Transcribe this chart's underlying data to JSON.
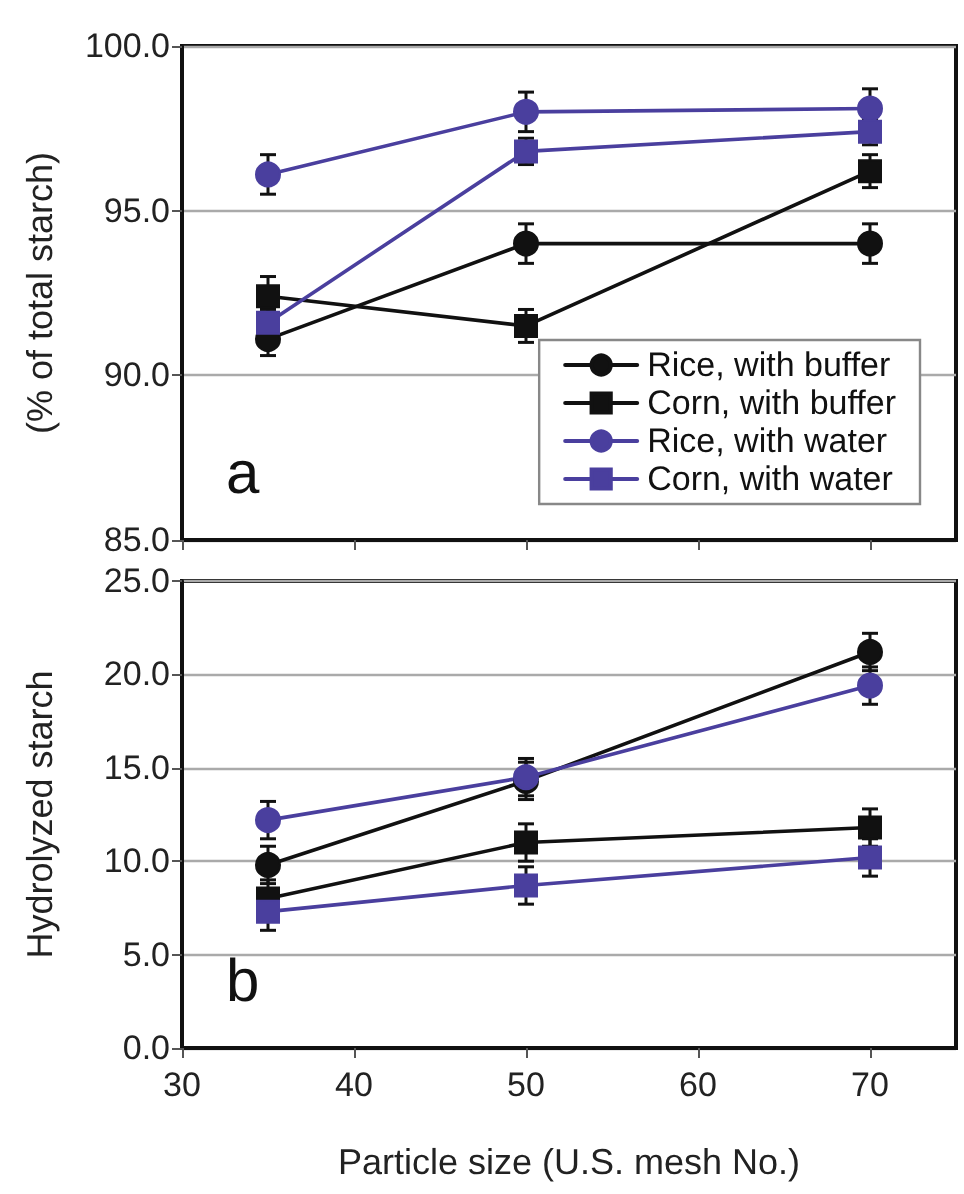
{
  "chart_data": [
    {
      "type": "line",
      "ylabel": "(% of total starch)",
      "x": [
        35,
        50,
        70
      ],
      "xlim": [
        30,
        75
      ],
      "xticks": [
        30,
        40,
        50,
        60,
        70
      ],
      "ylim": [
        85,
        100
      ],
      "yticks": [
        {
          "value": 85,
          "label": "85.0"
        },
        {
          "value": 90,
          "label": "90.0"
        },
        {
          "value": 95,
          "label": "95.0"
        },
        {
          "value": 100,
          "label": "100.0"
        }
      ],
      "grid": "y",
      "legend": "bottom right",
      "tick_labels": "y",
      "annotations": [
        "a"
      ],
      "series": [
        {
          "name": "Rice, with buffer",
          "color": "#111111",
          "marker": "circle",
          "values": [
            91.1,
            94.0,
            94.0
          ],
          "errors": [
            0.5,
            0.6,
            0.6
          ]
        },
        {
          "name": "Corn, with buffer",
          "color": "#111111",
          "marker": "square",
          "values": [
            92.4,
            91.5,
            96.2
          ],
          "errors": [
            0.6,
            0.5,
            0.5
          ]
        },
        {
          "name": "Rice, with water",
          "color": "#4a3f9e",
          "marker": "circle",
          "values": [
            96.1,
            98.0,
            98.1
          ],
          "errors": [
            0.6,
            0.6,
            0.6
          ]
        },
        {
          "name": "Corn, with water",
          "color": "#4a3f9e",
          "marker": "square",
          "values": [
            91.6,
            96.8,
            97.4
          ],
          "errors": [
            0.4,
            0.4,
            0.4
          ]
        }
      ]
    },
    {
      "type": "line",
      "ylabel": "Hydrolyzed starch",
      "xlabel": "Particle size (U.S. mesh No.)",
      "x": [
        35,
        50,
        70
      ],
      "xlim": [
        30,
        75
      ],
      "xticks": [
        30,
        40,
        50,
        60,
        70
      ],
      "ylim": [
        0,
        25
      ],
      "yticks": [
        {
          "value": 0,
          "label": "0.0"
        },
        {
          "value": 5,
          "label": "5.0"
        },
        {
          "value": 10,
          "label": "10.0"
        },
        {
          "value": 15,
          "label": "15.0"
        },
        {
          "value": 20,
          "label": "20.0"
        },
        {
          "value": 25,
          "label": "25.0"
        }
      ],
      "grid": "y",
      "annotations": [
        "b"
      ],
      "series": [
        {
          "color": "#111111",
          "marker": "circle",
          "values": [
            9.8,
            14.3,
            21.2
          ],
          "errors": [
            1.0,
            1.0,
            1.0
          ]
        },
        {
          "color": "#111111",
          "marker": "square",
          "values": [
            8.0,
            11.0,
            11.8
          ],
          "errors": [
            1.0,
            1.0,
            1.0
          ]
        },
        {
          "color": "#4a3f9e",
          "marker": "circle",
          "values": [
            12.2,
            14.5,
            19.4
          ],
          "errors": [
            1.0,
            1.0,
            1.0
          ]
        },
        {
          "color": "#4a3f9e",
          "marker": "square",
          "values": [
            7.3,
            8.7,
            10.2
          ],
          "errors": [
            1.0,
            1.0,
            1.0
          ]
        }
      ]
    }
  ]
}
